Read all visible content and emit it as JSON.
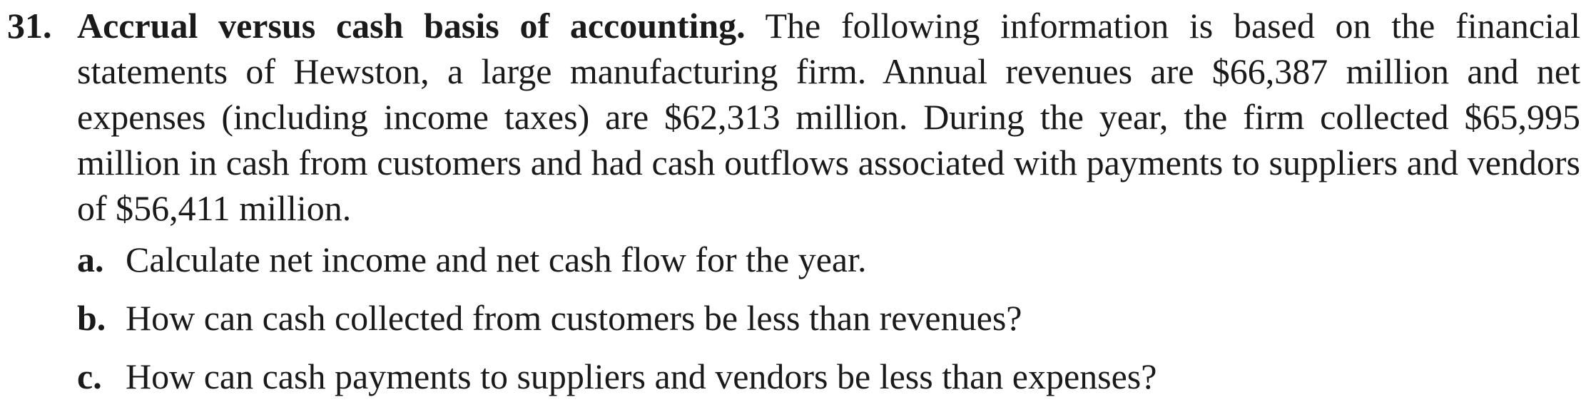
{
  "problem": {
    "number": "31.",
    "heading": "Accrual versus cash basis of accounting.",
    "body": "The following information is based on the financial statements of Hewston, a large manufacturing firm. Annual revenues are $66,387 million and net expenses (including income taxes) are $62,313 million. During the year, the firm collected $65,995 million in cash from customers and had cash outflows associated with payments to suppliers and vendors of $56,411 million.",
    "parts": [
      {
        "letter": "a.",
        "text": "Calculate net income and net cash flow for the year."
      },
      {
        "letter": "b.",
        "text": "How can cash collected from customers be less than revenues?"
      },
      {
        "letter": "c.",
        "text": "How can cash payments to suppliers and vendors be less than expenses?"
      }
    ]
  }
}
